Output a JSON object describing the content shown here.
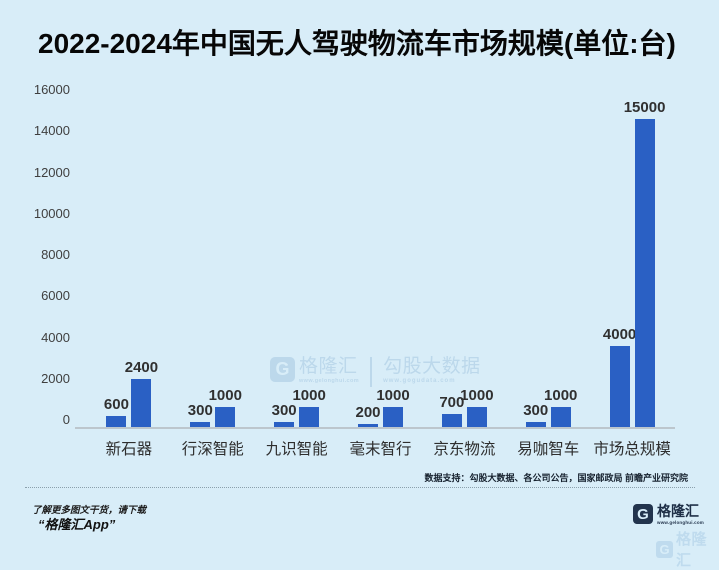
{
  "title": "2022-2024年中国无人驾驶物流车市场规模(单位:台)",
  "chart_data": {
    "type": "bar",
    "categories": [
      "新石器",
      "行深智能",
      "九识智能",
      "毫末智行",
      "京东物流",
      "易咖智车",
      "市场总规模"
    ],
    "series": [
      {
        "name": "first-bar",
        "values": [
          600,
          300,
          300,
          200,
          700,
          300,
          4000
        ]
      },
      {
        "name": "second-bar",
        "values": [
          2400,
          1000,
          1000,
          1000,
          1000,
          1000,
          15000
        ]
      }
    ],
    "title": "2022-2024年中国无人驾驶物流车市场规模(单位:台)",
    "xlabel": "",
    "ylabel": "",
    "ylim": [
      0,
      16000
    ],
    "yticks": [
      0,
      2000,
      4000,
      6000,
      8000,
      10000,
      12000,
      14000,
      16000
    ],
    "grid": false,
    "legend": "none",
    "bar_color": "#2a60c4"
  },
  "watermark_center": {
    "icon_glyph": "G",
    "brand": "格隆汇",
    "brand_url": "www.gelonghui.com",
    "data_brand": "勾股大数据",
    "data_url": "www.gogudata.com"
  },
  "footer": {
    "source_note": "数据支持：勾股大数据、各公司公告，国家邮政局 前瞻产业研究院",
    "promo_line1": "了解更多图文干货，请下载",
    "promo_line2": "“格隆汇App”",
    "logo_glyph": "G",
    "brand": "格隆汇",
    "brand_url": "www.gelonghui.com",
    "watermark_brand": "格隆汇"
  },
  "colors": {
    "background": "#d8edf8",
    "bar": "#2a60c4",
    "watermark": "#b9d6ea"
  }
}
